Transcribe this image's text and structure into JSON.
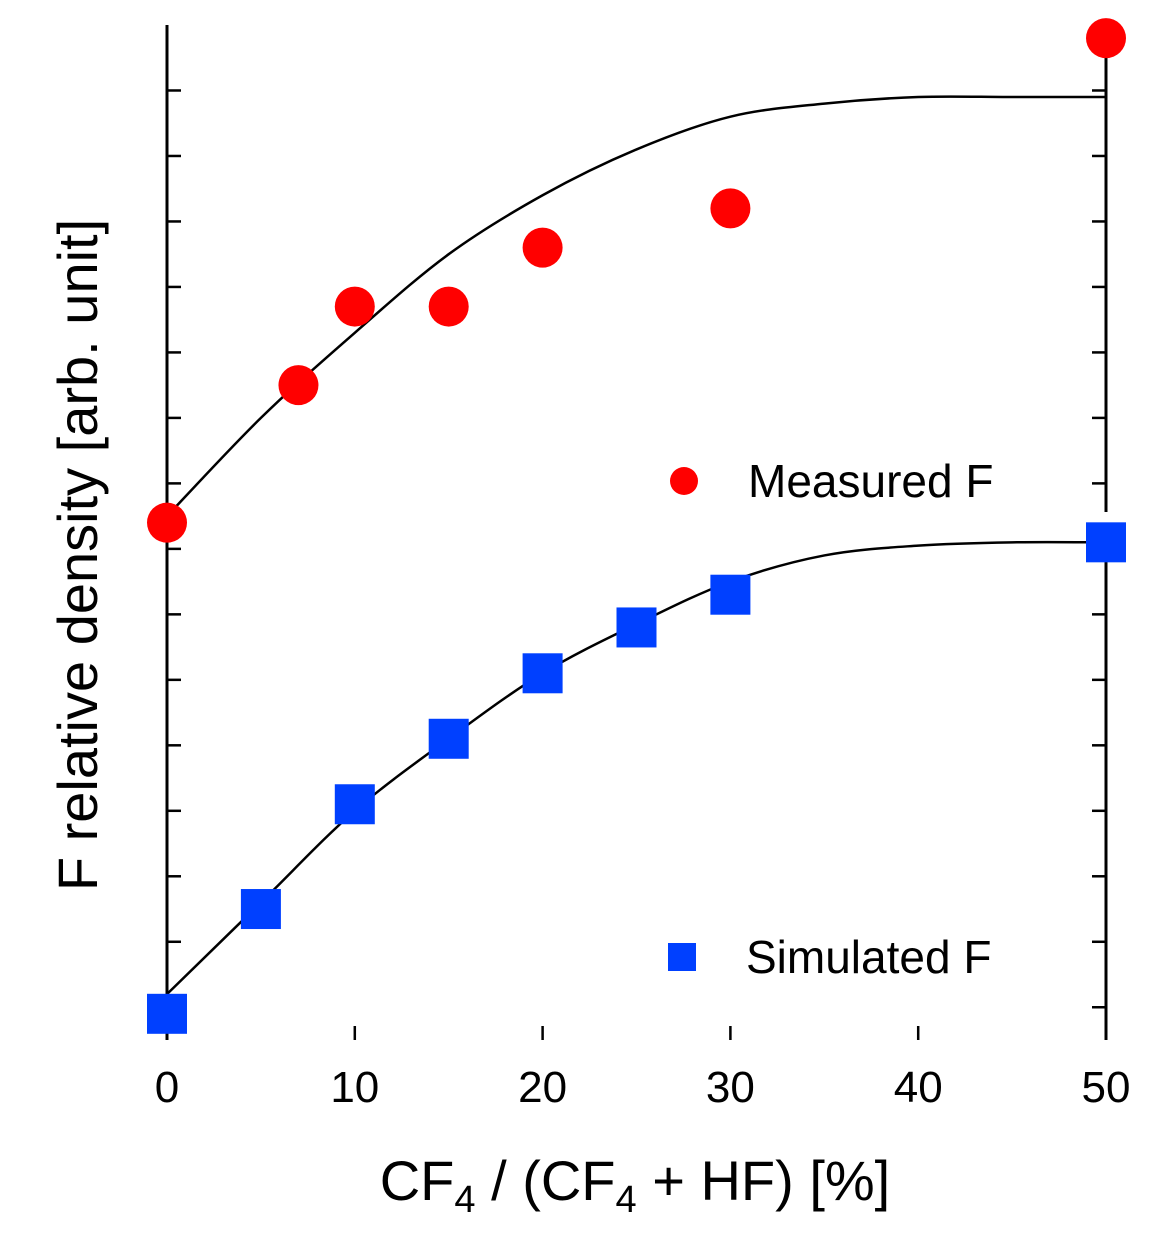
{
  "chart_data": {
    "type": "scatter",
    "xlabel": {
      "prefix": "CF",
      "sub1": "4",
      "middle": " / (CF",
      "sub2": "4",
      "suffix": " + HF) [%]"
    },
    "ylabel": "F relative density [arb. unit]",
    "x_ticks": [
      0,
      10,
      20,
      30,
      40,
      50
    ],
    "x_tick_labels": [
      "0",
      "10",
      "20",
      "30",
      "40",
      "50"
    ],
    "xlim": [
      0,
      50
    ],
    "ylim": [
      0,
      15.5
    ],
    "y_minor_ticks": [
      0.5,
      1.5,
      2.5,
      3.5,
      4.5,
      5.5,
      6.5,
      7.5,
      8.5,
      9.5,
      10.5,
      11.5,
      12.5,
      13.5,
      14.5
    ],
    "grid": false,
    "series": [
      {
        "name": "Measured F",
        "marker": "circle",
        "color": "#ff0000",
        "points": [
          {
            "x": 0,
            "y": 7.9
          },
          {
            "x": 7,
            "y": 10.0
          },
          {
            "x": 10,
            "y": 11.2
          },
          {
            "x": 15,
            "y": 11.2
          },
          {
            "x": 20,
            "y": 12.1
          },
          {
            "x": 30,
            "y": 12.7
          },
          {
            "x": 50,
            "y": 15.3
          }
        ],
        "fit": [
          {
            "x": 0,
            "y": 8.0
          },
          {
            "x": 5,
            "y": 9.5
          },
          {
            "x": 10,
            "y": 10.8
          },
          {
            "x": 15,
            "y": 12.0
          },
          {
            "x": 20,
            "y": 12.9
          },
          {
            "x": 25,
            "y": 13.6
          },
          {
            "x": 30,
            "y": 14.1
          },
          {
            "x": 35,
            "y": 14.3
          },
          {
            "x": 40,
            "y": 14.4
          },
          {
            "x": 45,
            "y": 14.4
          },
          {
            "x": 50,
            "y": 14.4
          }
        ]
      },
      {
        "name": "Simulated F",
        "marker": "square",
        "color": "#0040ff",
        "points": [
          {
            "x": 0,
            "y": 0.4
          },
          {
            "x": 5,
            "y": 2.0
          },
          {
            "x": 10,
            "y": 3.6
          },
          {
            "x": 15,
            "y": 4.6
          },
          {
            "x": 20,
            "y": 5.6
          },
          {
            "x": 25,
            "y": 6.3
          },
          {
            "x": 30,
            "y": 6.8
          },
          {
            "x": 50,
            "y": 7.6
          }
        ],
        "fit": [
          {
            "x": 0,
            "y": 0.7
          },
          {
            "x": 5,
            "y": 2.1
          },
          {
            "x": 10,
            "y": 3.5
          },
          {
            "x": 15,
            "y": 4.6
          },
          {
            "x": 20,
            "y": 5.6
          },
          {
            "x": 25,
            "y": 6.35
          },
          {
            "x": 30,
            "y": 7.0
          },
          {
            "x": 35,
            "y": 7.4
          },
          {
            "x": 40,
            "y": 7.55
          },
          {
            "x": 45,
            "y": 7.6
          },
          {
            "x": 50,
            "y": 7.6
          }
        ]
      }
    ],
    "legend": [
      {
        "label": "Measured F",
        "marker": "circle",
        "color": "#ff0000",
        "placement": "upper-right"
      },
      {
        "label": "Simulated F",
        "marker": "square",
        "color": "#0040ff",
        "placement": "lower-right"
      }
    ]
  }
}
